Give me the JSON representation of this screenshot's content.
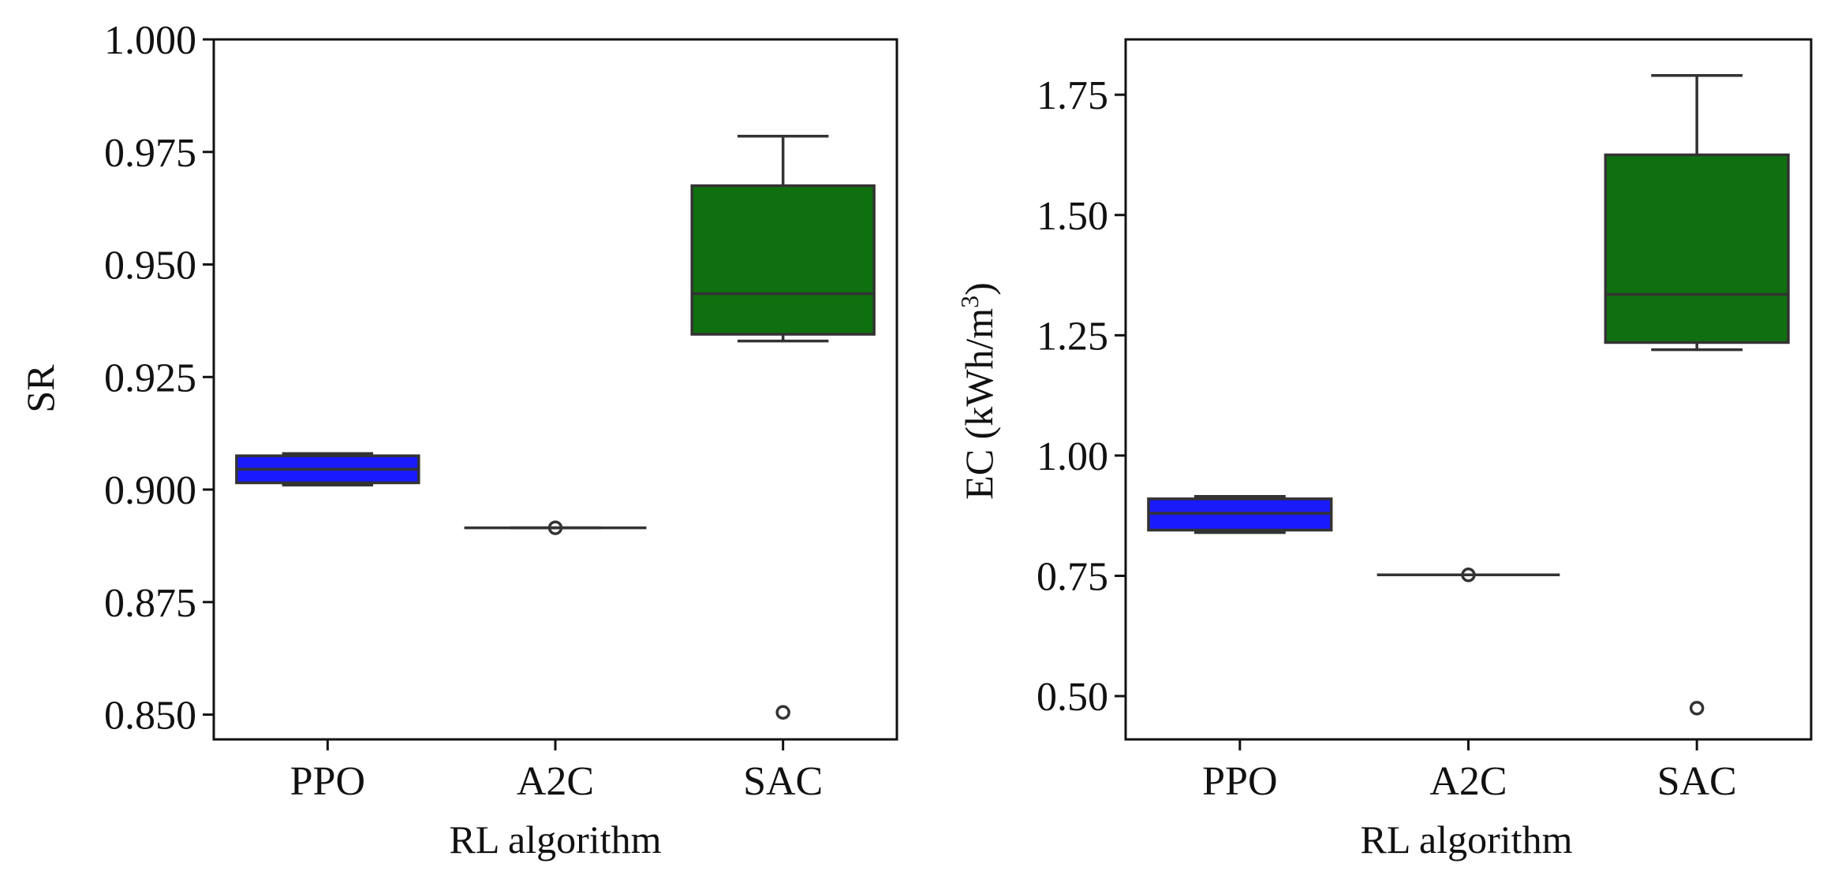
{
  "chart_data": [
    {
      "type": "box",
      "categories": [
        "PPO",
        "A2C",
        "SAC"
      ],
      "xlabel": "RL algorithm",
      "ylabel": "SR",
      "ylim": [
        0.8445,
        1.0
      ],
      "yticks": [
        0.85,
        0.875,
        0.9,
        0.925,
        0.95,
        0.975,
        1.0
      ],
      "ytick_labels": [
        "0.850",
        "0.875",
        "0.900",
        "0.925",
        "0.950",
        "0.975",
        "1.000"
      ],
      "boxes": [
        {
          "category": "PPO",
          "whisker_low": 0.901,
          "q1": 0.9015,
          "median": 0.9045,
          "q3": 0.9075,
          "whisker_high": 0.908,
          "outliers": [],
          "color": "#1a1aff"
        },
        {
          "category": "A2C",
          "whisker_low": 0.8915,
          "q1": 0.8915,
          "median": 0.8915,
          "q3": 0.8915,
          "whisker_high": 0.8915,
          "outliers": [
            0.8915
          ],
          "color": "#1a1aff"
        },
        {
          "category": "SAC",
          "whisker_low": 0.933,
          "q1": 0.9345,
          "median": 0.9435,
          "q3": 0.9675,
          "whisker_high": 0.9785,
          "outliers": [
            0.8505
          ],
          "color": "#0f700f"
        }
      ],
      "grid": false
    },
    {
      "type": "box",
      "categories": [
        "PPO",
        "A2C",
        "SAC"
      ],
      "xlabel": "RL algorithm",
      "ylabel_main": "EC (kWh/m",
      "ylabel_sup": "3",
      "ylabel_end": ")",
      "ylim": [
        0.41,
        1.865
      ],
      "yticks": [
        0.5,
        0.75,
        1.0,
        1.25,
        1.5,
        1.75
      ],
      "ytick_labels": [
        "0.50",
        "0.75",
        "1.00",
        "1.25",
        "1.50",
        "1.75"
      ],
      "boxes": [
        {
          "category": "PPO",
          "whisker_low": 0.84,
          "q1": 0.845,
          "median": 0.88,
          "q3": 0.91,
          "whisker_high": 0.915,
          "outliers": [],
          "color": "#1a1aff"
        },
        {
          "category": "A2C",
          "whisker_low": 0.752,
          "q1": 0.752,
          "median": 0.752,
          "q3": 0.752,
          "whisker_high": 0.752,
          "outliers": [
            0.752
          ],
          "color": "#1a1aff"
        },
        {
          "category": "SAC",
          "whisker_low": 1.22,
          "q1": 1.235,
          "median": 1.335,
          "q3": 1.625,
          "whisker_high": 1.79,
          "outliers": [
            0.475
          ],
          "color": "#0f700f"
        }
      ],
      "grid": false
    }
  ]
}
